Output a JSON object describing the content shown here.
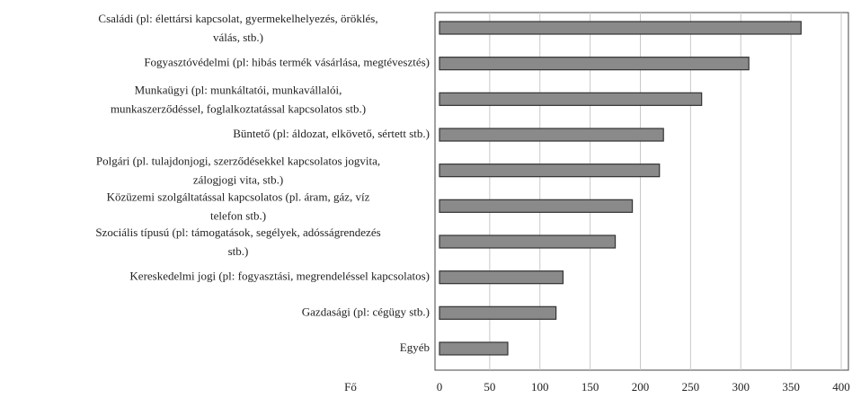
{
  "chart_data": {
    "type": "hbar",
    "categories": [
      [
        "Családi (pl: élettársi kapcsolat, gyermekelhelyezés, öröklés,",
        "válás, stb.)"
      ],
      [
        "Fogyasztóvédelmi (pl: hibás termék vásárlása, megtévesztés)"
      ],
      [
        "Munkaügyi (pl: munkáltatói, munkavállalói,",
        "munkaszerződéssel, foglalkoztatással kapcsolatos stb.)"
      ],
      [
        "Büntető (pl: áldozat, elkövető, sértett stb.)"
      ],
      [
        "Polgári (pl. tulajdonjogi, szerződésekkel kapcsolatos jogvita,",
        "zálogjogi vita, stb.)"
      ],
      [
        "Közüzemi szolgáltatással kapcsolatos (pl. áram, gáz, víz",
        "telefon stb.)"
      ],
      [
        "Szociális típusú (pl: támogatások, segélyek, adósságrendezés",
        "stb.)"
      ],
      [
        "Kereskedelmi jogi (pl: fogyasztási, megrendeléssel kapcsolatos)"
      ],
      [
        "Gazdasági (pl: cégügy stb.)"
      ],
      [
        "Egyéb"
      ]
    ],
    "values": [
      360,
      308,
      261,
      223,
      219,
      192,
      175,
      123,
      116,
      68
    ],
    "color": "#8a8a8a",
    "xlabel": "Fő",
    "xlim": [
      0,
      400
    ],
    "xticks": [
      0,
      50,
      100,
      150,
      200,
      250,
      300,
      350,
      400
    ],
    "grid": true
  }
}
